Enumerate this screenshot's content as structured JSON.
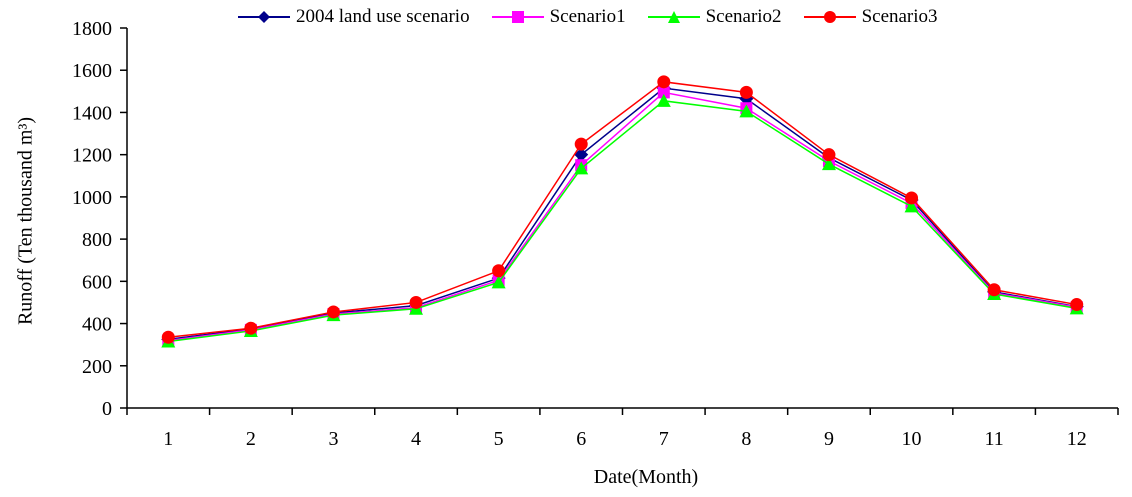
{
  "chart_data": {
    "type": "line",
    "xlabel": "Date(Month)",
    "ylabel": "Runoff (Ten thousand m³)",
    "categories": [
      "1",
      "2",
      "3",
      "4",
      "5",
      "6",
      "7",
      "8",
      "9",
      "10",
      "11",
      "12"
    ],
    "ylim": [
      0,
      1800
    ],
    "yticks": [
      0,
      200,
      400,
      600,
      800,
      1000,
      1200,
      1400,
      1600,
      1800
    ],
    "grid": false,
    "legend_position": "top",
    "series": [
      {
        "name": "2004 land use scenario",
        "color": "#00008B",
        "marker": "diamond",
        "values": [
          325,
          375,
          450,
          485,
          615,
          1200,
          1515,
          1465,
          1185,
          985,
          550,
          480
        ]
      },
      {
        "name": "Scenario1",
        "color": "#FF00FF",
        "marker": "square",
        "values": [
          320,
          370,
          445,
          475,
          605,
          1150,
          1495,
          1420,
          1170,
          970,
          545,
          478
        ]
      },
      {
        "name": "Scenario2",
        "color": "#00FF00",
        "marker": "triangle",
        "values": [
          315,
          365,
          440,
          470,
          595,
          1135,
          1455,
          1405,
          1155,
          955,
          540,
          472
        ]
      },
      {
        "name": "Scenario3",
        "color": "#FF0000",
        "marker": "circle",
        "values": [
          335,
          378,
          455,
          500,
          650,
          1250,
          1545,
          1495,
          1200,
          995,
          560,
          490
        ]
      }
    ]
  }
}
